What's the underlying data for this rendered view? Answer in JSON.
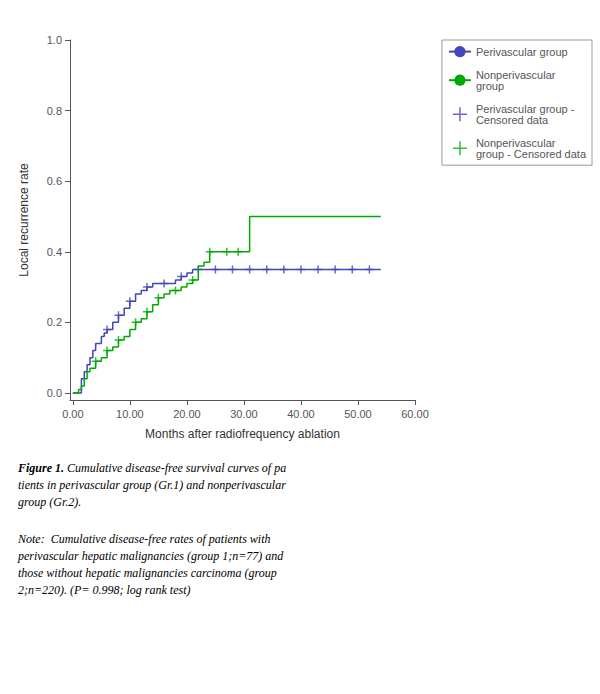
{
  "chart_data": {
    "type": "step",
    "xlabel": "Months after radiofrequency ablation",
    "ylabel": "Local recurrence rate",
    "annotations": [
      "Figure 1.",
      " Cumulative disease-free survival curves of pa\ntients in perivascular group (Gr.1) and nonperivascular\ngroup (Gr.2).",
      "Note:  Cumulative disease-free rates of patients with\nperivascular hepatic malignancies (group 1;n=77) and\nthose without hepatic malignancies carcinoma (group\n2;n=220). (P= 0.998; log rank test)"
    ],
    "series": [
      {
        "name": "Perivascular group",
        "type": "step",
        "color": "#4444bb",
        "x": [
          0,
          1.5,
          2,
          2.5,
          3,
          3.5,
          4,
          5,
          5.5,
          6,
          7,
          8,
          9,
          10,
          11,
          12,
          13,
          14,
          15,
          16,
          17,
          18,
          19,
          20,
          21,
          22,
          23,
          24,
          25,
          26,
          27,
          28,
          29,
          54
        ],
        "values": [
          0.0,
          0.04,
          0.06,
          0.08,
          0.1,
          0.12,
          0.14,
          0.16,
          0.17,
          0.18,
          0.2,
          0.22,
          0.24,
          0.26,
          0.28,
          0.29,
          0.3,
          0.31,
          0.31,
          0.31,
          0.31,
          0.32,
          0.33,
          0.34,
          0.35,
          0.35,
          0.35,
          0.35,
          0.35,
          0.35,
          0.35,
          0.35,
          0.35,
          0.35
        ]
      },
      {
        "name": "Nonperivascular\ngroup",
        "type": "step",
        "color": "#00aa00",
        "x": [
          0,
          1,
          1.5,
          2,
          2.5,
          3,
          4,
          5,
          6,
          7,
          8,
          9,
          10,
          11,
          12,
          13,
          14,
          15,
          16,
          17,
          18,
          19,
          20,
          21,
          22,
          23,
          24,
          25,
          26,
          27,
          28,
          29,
          30,
          31,
          38,
          54
        ],
        "values": [
          0.0,
          0.01,
          0.02,
          0.04,
          0.06,
          0.07,
          0.09,
          0.1,
          0.12,
          0.13,
          0.15,
          0.16,
          0.18,
          0.2,
          0.21,
          0.23,
          0.25,
          0.27,
          0.28,
          0.29,
          0.29,
          0.3,
          0.31,
          0.32,
          0.36,
          0.37,
          0.4,
          0.4,
          0.4,
          0.4,
          0.4,
          0.4,
          0.4,
          0.5,
          0.5,
          0.5
        ]
      },
      {
        "name": "Perivascular group -\nCensored data",
        "type": "scatter",
        "marker": "+",
        "color": "#4444bb",
        "x": [
          6,
          8,
          10,
          13,
          16,
          19,
          22,
          25,
          28,
          31,
          34,
          37,
          40,
          43,
          46,
          49,
          52
        ],
        "values": [
          0.18,
          0.22,
          0.26,
          0.3,
          0.31,
          0.33,
          0.35,
          0.35,
          0.35,
          0.35,
          0.35,
          0.35,
          0.35,
          0.35,
          0.35,
          0.35,
          0.35
        ]
      },
      {
        "name": "Nonperivascular\ngroup - Censored data",
        "type": "scatter",
        "marker": "+",
        "color": "#00aa00",
        "x": [
          4,
          6,
          8,
          11,
          13,
          15,
          18,
          21,
          24,
          27,
          29
        ],
        "values": [
          0.09,
          0.12,
          0.15,
          0.2,
          0.23,
          0.27,
          0.29,
          0.32,
          0.4,
          0.4,
          0.4
        ]
      }
    ],
    "xlim": [
      -0.5,
      60
    ],
    "ylim": [
      -0.02,
      1.0
    ],
    "xticks": [
      {
        "value": 0,
        "label": "0.00"
      },
      {
        "value": 10,
        "label": "10.00"
      },
      {
        "value": 20,
        "label": "20.00"
      },
      {
        "value": 30,
        "label": "30.00"
      },
      {
        "value": 40,
        "label": "40.00"
      },
      {
        "value": 50,
        "label": "50.00"
      },
      {
        "value": 60,
        "label": "60.00"
      }
    ],
    "yticks": [
      {
        "value": 0,
        "label": "0.0"
      },
      0.2,
      0.4,
      0.6,
      0.8,
      {
        "value": 1,
        "label": "1.0"
      }
    ],
    "grid": false,
    "legend": "right"
  }
}
